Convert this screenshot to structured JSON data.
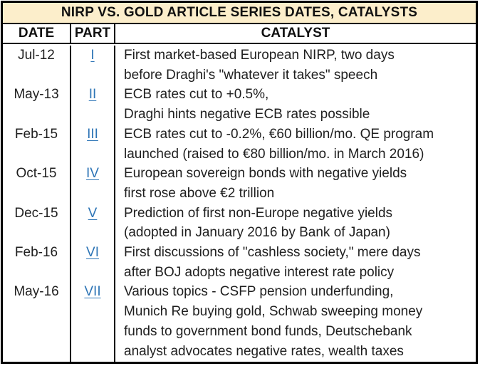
{
  "title": "NIRP VS. GOLD ARTICLE SERIES DATES, CATALYSTS",
  "columns": {
    "date": "DATE",
    "part": "PART",
    "catalyst": "CATALYST"
  },
  "rows": [
    {
      "date": "Jul-12",
      "part": "I",
      "lines": [
        "First market-based European NIRP, two days",
        "before Draghi's \"whatever it takes\" speech"
      ]
    },
    {
      "date": "May-13",
      "part": "II",
      "lines": [
        "ECB rates cut to +0.5%,",
        "Draghi hints negative ECB rates possible"
      ]
    },
    {
      "date": "Feb-15",
      "part": "III",
      "lines": [
        "ECB rates cut to -0.2%, €60 billion/mo. QE program",
        "launched (raised to €80 billion/mo. in March 2016)"
      ]
    },
    {
      "date": "Oct-15",
      "part": "IV",
      "lines": [
        "European sovereign bonds with negative yields",
        "first rose above €2 trillion"
      ]
    },
    {
      "date": "Dec-15",
      "part": "V",
      "lines": [
        "Prediction of first non-Europe negative yields",
        "(adopted in January 2016 by Bank of Japan)"
      ]
    },
    {
      "date": "Feb-16",
      "part": "VI",
      "lines": [
        "First discussions of \"cashless society,\" mere days",
        "after BOJ adopts negative interest rate policy"
      ]
    },
    {
      "date": "May-16",
      "part": "VII",
      "lines": [
        "Various topics - CSFP pension underfunding,",
        "Munich Re buying gold, Schwab sweeping money",
        "funds to government bond funds, Deutschebank",
        "analyst advocates negative rates, wealth taxes"
      ]
    }
  ],
  "colors": {
    "title_background": "#FCEECB",
    "link_blue": "#2E75B6",
    "border": "#000000",
    "text": "#1F1F1F"
  }
}
